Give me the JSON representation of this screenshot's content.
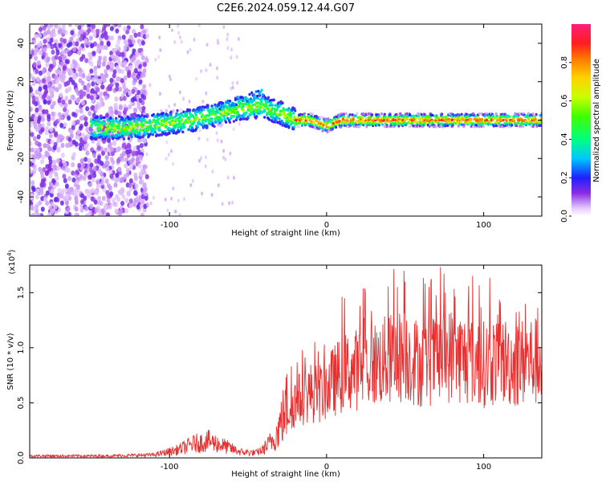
{
  "title": "C2E6.2024.059.12.44.G07",
  "chart_data": [
    {
      "type": "heatmap",
      "xlabel": "Height of straight line (km)",
      "ylabel": "Frequency (Hz)",
      "xlim": [
        -189,
        137
      ],
      "ylim": [
        -50,
        50
      ],
      "x_ticks": [
        -100,
        0,
        100
      ],
      "y_ticks": [
        -40,
        -20,
        0,
        20,
        40
      ],
      "colorbar": {
        "label": "Normalized spectral amplitude",
        "range": [
          0,
          1
        ],
        "ticks": [
          0.0,
          0.2,
          0.4,
          0.6,
          0.8
        ]
      },
      "ridge": {
        "x": [
          -140,
          -125,
          -115,
          -105,
          -95,
          -85,
          -75,
          -65,
          -55,
          -45,
          -40,
          -35,
          -30,
          -25,
          -20,
          -10,
          0,
          10,
          20,
          40,
          60,
          80,
          100,
          120,
          137
        ],
        "y": [
          -4,
          -4,
          -3,
          -2,
          -1,
          0,
          2,
          4,
          6,
          7,
          7,
          5,
          4,
          2,
          0,
          0,
          -3,
          0,
          0,
          0,
          0,
          0,
          0,
          0,
          0
        ]
      },
      "grid": false
    },
    {
      "type": "line",
      "xlabel": "Height of straight line (km)",
      "ylabel": "SNR (10 * v/v)",
      "y_multiplier": "(x10",
      "y_multiplier_exp": "4",
      "y_multiplier_close": ")",
      "xlim": [
        -189,
        137
      ],
      "ylim": [
        0,
        1.75
      ],
      "x_ticks": [
        -100,
        0,
        100
      ],
      "y_ticks": [
        0.0,
        0.5,
        1.0,
        1.5
      ],
      "series": [
        {
          "color": "#e83030",
          "envelope_x": [
            -189,
            -140,
            -110,
            -95,
            -85,
            -75,
            -65,
            -55,
            -45,
            -38,
            -32,
            -28,
            -24,
            -20,
            -15,
            -10,
            -5,
            0,
            10,
            20,
            30,
            40,
            50,
            60,
            70,
            80,
            90,
            100,
            110,
            120,
            130,
            137
          ],
          "envelope_y": [
            0.02,
            0.02,
            0.03,
            0.08,
            0.14,
            0.17,
            0.12,
            0.06,
            0.05,
            0.1,
            0.2,
            0.35,
            0.5,
            0.6,
            0.65,
            0.7,
            0.68,
            0.75,
            0.9,
            0.95,
            1.0,
            1.05,
            1.1,
            1.0,
            1.05,
            1.1,
            1.05,
            1.0,
            1.05,
            1.0,
            1.05,
            1.0
          ]
        }
      ],
      "grid": false
    }
  ]
}
